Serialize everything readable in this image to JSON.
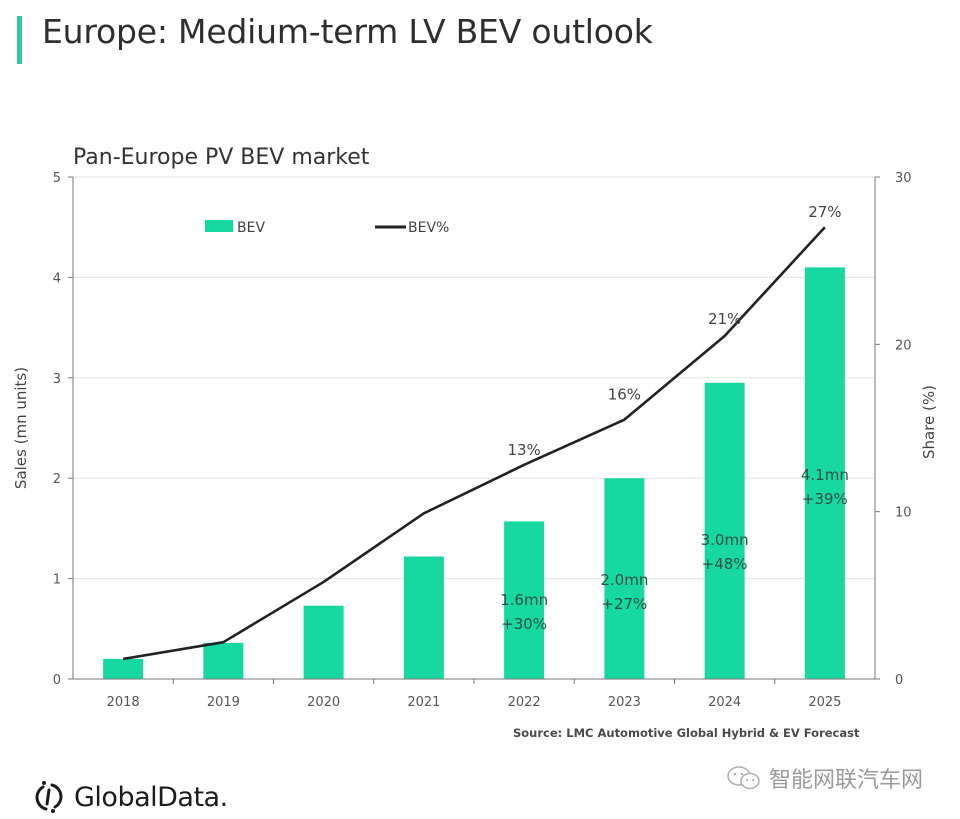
{
  "header": {
    "title": "Europe: Medium-term LV BEV outlook",
    "accent_color": "#33c9a0"
  },
  "footer": {
    "source": "Source: LMC Automotive Global Hybrid & EV Forecast",
    "logo_text": "GlobalData.",
    "logo_icon": "globaldata-logo-icon",
    "watermark_text": "智能网联汽车网",
    "watermark_icon": "wechat-icon"
  },
  "chart_data": {
    "type": "bar",
    "title": "Pan-Europe PV BEV market",
    "xlabel": "",
    "ylabel": "Sales (mn units)",
    "y2label": "Share (%)",
    "categories": [
      "2018",
      "2019",
      "2020",
      "2021",
      "2022",
      "2023",
      "2024",
      "2025"
    ],
    "ylim": [
      0,
      5
    ],
    "y2lim": [
      0,
      30
    ],
    "yticks": [
      "0",
      "1",
      "2",
      "3",
      "4",
      "5"
    ],
    "y2ticks": [
      "0",
      "10",
      "20",
      "30"
    ],
    "grid": true,
    "legend": {
      "placement": "top",
      "entries": [
        "BEV",
        "BEV%"
      ]
    },
    "series": [
      {
        "name": "BEV",
        "type": "bar",
        "axis": "left",
        "color": "#17d8a0",
        "values": [
          0.2,
          0.36,
          0.73,
          1.22,
          1.57,
          2.0,
          2.95,
          4.1
        ],
        "labels": [
          "",
          "",
          "",
          "",
          "1.6mn\n+30%",
          "2.0mn\n+27%",
          "3.0mn\n+48%",
          "4.1mn\n+39%"
        ]
      },
      {
        "name": "BEV%",
        "type": "line",
        "axis": "right",
        "color": "#222222",
        "values": [
          1.2,
          2.2,
          5.8,
          9.9,
          12.8,
          15.5,
          20.5,
          27.0
        ],
        "labels": [
          "",
          "",
          "",
          "",
          "13%",
          "16%",
          "21%",
          "27%"
        ]
      }
    ]
  }
}
